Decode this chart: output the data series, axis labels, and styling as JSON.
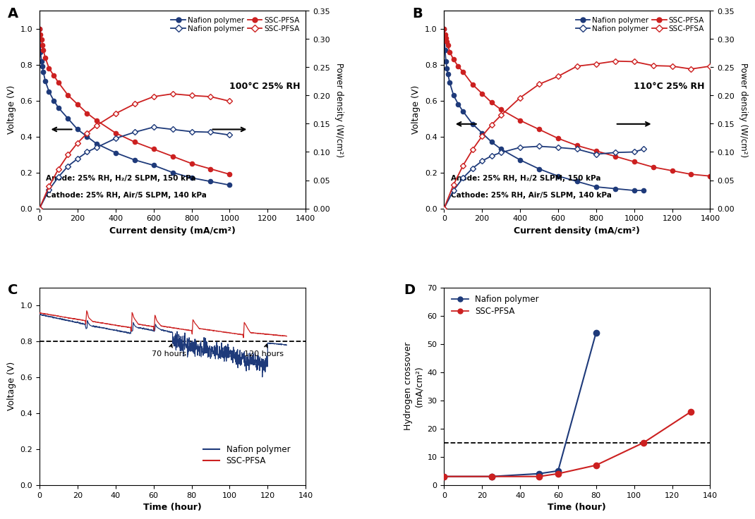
{
  "panel_A": {
    "title": "100°C 25% RH",
    "xlabel": "Current density (mA/cm²)",
    "ylabel_left": "Voltage (V)",
    "ylabel_right": "Power density (W/cm²)",
    "annotation_line1": "Anode: 25% RH, H₂/2 SLPM, 150 kPa",
    "annotation_line2": "Cathode: 25% RH, Air/5 SLPM, 140 kPa",
    "nafion_voltage_x": [
      0,
      5,
      10,
      15,
      20,
      30,
      50,
      75,
      100,
      150,
      200,
      250,
      300,
      400,
      500,
      600,
      700,
      800,
      900,
      1000
    ],
    "nafion_voltage_y": [
      1.0,
      0.87,
      0.82,
      0.79,
      0.76,
      0.71,
      0.65,
      0.6,
      0.56,
      0.5,
      0.44,
      0.4,
      0.36,
      0.31,
      0.27,
      0.24,
      0.2,
      0.17,
      0.15,
      0.13
    ],
    "ssc_voltage_x": [
      0,
      5,
      10,
      15,
      20,
      30,
      50,
      75,
      100,
      150,
      200,
      250,
      300,
      400,
      500,
      600,
      700,
      800,
      900,
      1000
    ],
    "ssc_voltage_y": [
      1.0,
      0.97,
      0.94,
      0.91,
      0.88,
      0.84,
      0.78,
      0.74,
      0.7,
      0.63,
      0.58,
      0.53,
      0.49,
      0.42,
      0.37,
      0.33,
      0.29,
      0.25,
      0.22,
      0.19
    ],
    "nafion_power_x": [
      0,
      50,
      100,
      150,
      200,
      250,
      300,
      400,
      500,
      600,
      700,
      800,
      900,
      1000
    ],
    "nafion_power_y": [
      0,
      0.033,
      0.056,
      0.075,
      0.088,
      0.1,
      0.108,
      0.124,
      0.135,
      0.144,
      0.14,
      0.136,
      0.135,
      0.13
    ],
    "ssc_power_x": [
      0,
      50,
      100,
      150,
      200,
      250,
      300,
      400,
      500,
      600,
      700,
      800,
      900,
      1000
    ],
    "ssc_power_y": [
      0,
      0.039,
      0.07,
      0.095,
      0.116,
      0.133,
      0.147,
      0.168,
      0.185,
      0.198,
      0.203,
      0.2,
      0.198,
      0.19
    ],
    "xlim": [
      0,
      1400
    ],
    "ylim_left": [
      0,
      1.1
    ],
    "ylim_right": [
      0,
      0.35
    ],
    "xticks": [
      0,
      200,
      400,
      600,
      800,
      1000,
      1200,
      1400
    ],
    "yticks_left": [
      0.0,
      0.2,
      0.4,
      0.6,
      0.8,
      1.0
    ],
    "yticks_right": [
      0.0,
      0.05,
      0.1,
      0.15,
      0.2,
      0.25,
      0.3,
      0.35
    ]
  },
  "panel_B": {
    "title": "110°C 25% RH",
    "xlabel": "Current density (mA/cm²)",
    "ylabel_left": "Voltage (V)",
    "ylabel_right": "Power density (W/cm²)",
    "annotation_line1": "Anode: 25% RH, H₂/2 SLPM, 150 kPa",
    "annotation_line2": "Cathode: 25% RH, Air/5 SLPM, 140 kPa",
    "nafion_voltage_x": [
      0,
      5,
      10,
      15,
      20,
      30,
      50,
      75,
      100,
      150,
      200,
      250,
      300,
      400,
      500,
      600,
      700,
      800,
      900,
      1000,
      1050
    ],
    "nafion_voltage_y": [
      1.0,
      0.88,
      0.82,
      0.78,
      0.75,
      0.7,
      0.63,
      0.58,
      0.54,
      0.47,
      0.42,
      0.37,
      0.33,
      0.27,
      0.22,
      0.18,
      0.15,
      0.12,
      0.11,
      0.1,
      0.1
    ],
    "ssc_voltage_x": [
      0,
      5,
      10,
      15,
      20,
      30,
      50,
      75,
      100,
      150,
      200,
      250,
      300,
      400,
      500,
      600,
      700,
      800,
      900,
      1000,
      1100,
      1200,
      1300,
      1400
    ],
    "ssc_voltage_y": [
      1.0,
      0.97,
      0.95,
      0.93,
      0.91,
      0.87,
      0.83,
      0.79,
      0.76,
      0.69,
      0.64,
      0.59,
      0.55,
      0.49,
      0.44,
      0.39,
      0.35,
      0.32,
      0.29,
      0.26,
      0.23,
      0.21,
      0.19,
      0.18
    ],
    "nafion_power_x": [
      0,
      50,
      100,
      150,
      200,
      250,
      300,
      400,
      500,
      600,
      700,
      800,
      900,
      1000,
      1050
    ],
    "nafion_power_y": [
      0,
      0.032,
      0.054,
      0.071,
      0.084,
      0.093,
      0.099,
      0.108,
      0.11,
      0.108,
      0.105,
      0.096,
      0.099,
      0.1,
      0.105
    ],
    "ssc_power_x": [
      0,
      50,
      100,
      150,
      200,
      250,
      300,
      400,
      500,
      600,
      700,
      800,
      900,
      1000,
      1100,
      1200,
      1300,
      1400
    ],
    "ssc_power_y": [
      0,
      0.042,
      0.076,
      0.104,
      0.128,
      0.148,
      0.165,
      0.196,
      0.22,
      0.234,
      0.252,
      0.256,
      0.261,
      0.26,
      0.253,
      0.252,
      0.247,
      0.252
    ],
    "xlim": [
      0,
      1400
    ],
    "ylim_left": [
      0,
      1.1
    ],
    "ylim_right": [
      0,
      0.35
    ],
    "xticks": [
      0,
      200,
      400,
      600,
      800,
      1000,
      1200,
      1400
    ],
    "yticks_left": [
      0.0,
      0.2,
      0.4,
      0.6,
      0.8,
      1.0
    ],
    "yticks_right": [
      0.0,
      0.05,
      0.1,
      0.15,
      0.2,
      0.25,
      0.3,
      0.35
    ]
  },
  "panel_C": {
    "xlabel": "Time (hour)",
    "ylabel": "Voltage (V)",
    "ylim": [
      0.0,
      1.1
    ],
    "xlim": [
      0,
      140
    ],
    "dashed_y": 0.8,
    "xticks": [
      0,
      20,
      40,
      60,
      80,
      100,
      120,
      140
    ],
    "yticks": [
      0.0,
      0.2,
      0.4,
      0.6,
      0.8,
      1.0
    ]
  },
  "panel_D": {
    "xlabel": "Time (hour)",
    "ylabel_line1": "Hydrogen crossover",
    "ylabel_line2": "(mA/cm²)",
    "ylim": [
      0,
      70
    ],
    "xlim": [
      0,
      140
    ],
    "dashed_y": 15,
    "nafion_x": [
      0,
      25,
      50,
      60,
      80
    ],
    "nafion_y": [
      3,
      3,
      4,
      5,
      54
    ],
    "ssc_x": [
      0,
      25,
      50,
      60,
      80,
      105,
      130
    ],
    "ssc_y": [
      3,
      3,
      3,
      4,
      7,
      15,
      26
    ],
    "xticks": [
      0,
      20,
      40,
      60,
      80,
      100,
      120,
      140
    ],
    "yticks": [
      0,
      10,
      20,
      30,
      40,
      50,
      60,
      70
    ]
  },
  "colors": {
    "nafion_blue": "#1e3a7a",
    "ssc_red": "#cc2020"
  }
}
